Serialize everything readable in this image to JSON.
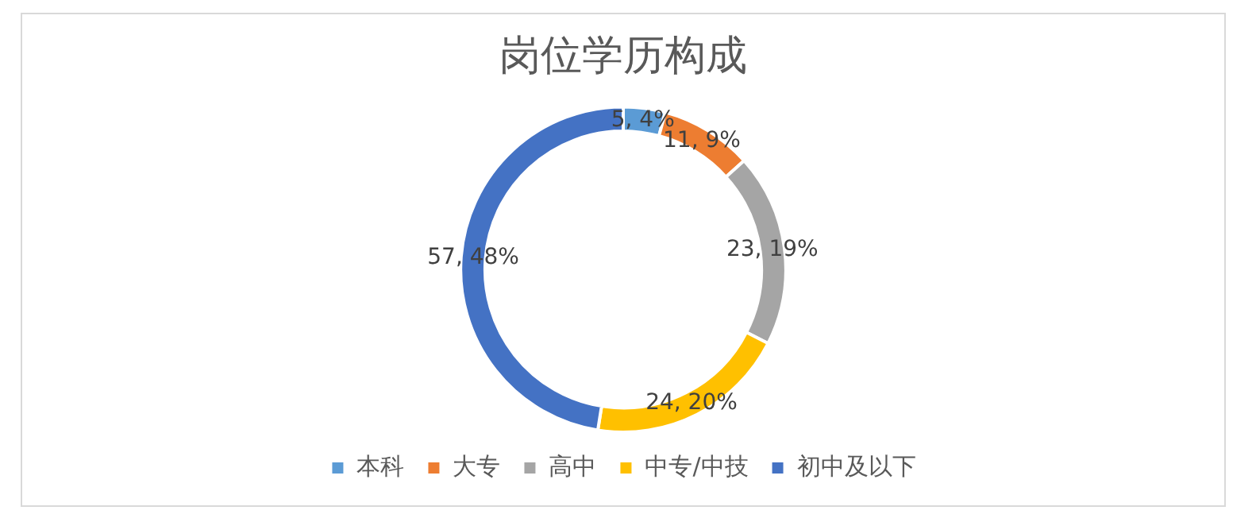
{
  "chart_data": {
    "type": "donut",
    "title": "岗位学历构成",
    "categories": [
      "本科",
      "大专",
      "高中",
      "中专/中技",
      "初中及以下"
    ],
    "values": [
      5,
      11,
      23,
      24,
      57
    ],
    "colors": [
      "#5b9bd5",
      "#ed7d31",
      "#a5a5a5",
      "#ffc000",
      "#4472c4"
    ],
    "value_labels": [
      "5, 4%",
      "11, 9%",
      "23, 19%",
      "24, 20%",
      "57, 48%"
    ],
    "legend": "bottom"
  }
}
